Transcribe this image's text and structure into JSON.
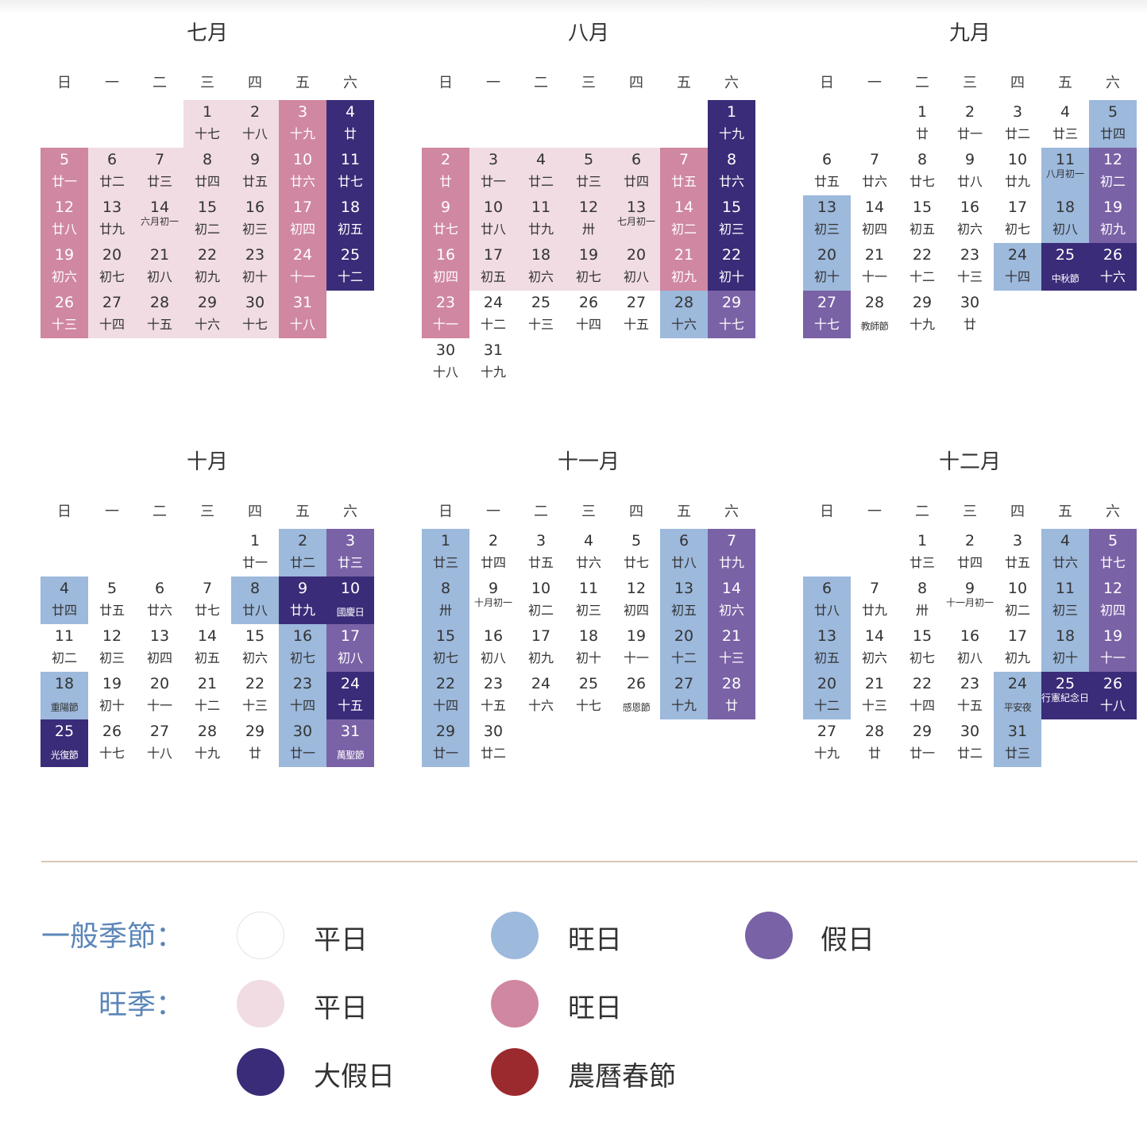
{
  "weekdays": [
    "日",
    "一",
    "二",
    "三",
    "四",
    "五",
    "六"
  ],
  "months": [
    {
      "title": "七月",
      "start": 3,
      "days": [
        [
          "1",
          "十七",
          "ph"
        ],
        [
          "2",
          "十八",
          "ph"
        ],
        [
          "3",
          "十九",
          "pp"
        ],
        [
          "4",
          "廿",
          "dk"
        ],
        [
          "5",
          "廿一",
          "pp"
        ],
        [
          "6",
          "廿二",
          "ph"
        ],
        [
          "7",
          "廿三",
          "ph"
        ],
        [
          "8",
          "廿四",
          "ph"
        ],
        [
          "9",
          "廿五",
          "ph"
        ],
        [
          "10",
          "廿六",
          "pp"
        ],
        [
          "11",
          "廿七",
          "dk"
        ],
        [
          "12",
          "廿八",
          "pp"
        ],
        [
          "13",
          "廿九",
          "ph"
        ],
        [
          "14",
          "六月初一",
          "ph"
        ],
        [
          "15",
          "初二",
          "ph"
        ],
        [
          "16",
          "初三",
          "ph"
        ],
        [
          "17",
          "初四",
          "pp"
        ],
        [
          "18",
          "初五",
          "dk"
        ],
        [
          "19",
          "初六",
          "pp"
        ],
        [
          "20",
          "初七",
          "ph"
        ],
        [
          "21",
          "初八",
          "ph"
        ],
        [
          "22",
          "初九",
          "ph"
        ],
        [
          "23",
          "初十",
          "ph"
        ],
        [
          "24",
          "十一",
          "pp"
        ],
        [
          "25",
          "十二",
          "dk"
        ],
        [
          "26",
          "十三",
          "pp"
        ],
        [
          "27",
          "十四",
          "ph"
        ],
        [
          "28",
          "十五",
          "ph"
        ],
        [
          "29",
          "十六",
          "ph"
        ],
        [
          "30",
          "十七",
          "ph"
        ],
        [
          "31",
          "十八",
          "pp"
        ]
      ]
    },
    {
      "title": "八月",
      "start": 6,
      "days": [
        [
          "1",
          "十九",
          "dk"
        ],
        [
          "2",
          "廿",
          "pp"
        ],
        [
          "3",
          "廿一",
          "ph"
        ],
        [
          "4",
          "廿二",
          "ph"
        ],
        [
          "5",
          "廿三",
          "ph"
        ],
        [
          "6",
          "廿四",
          "ph"
        ],
        [
          "7",
          "廿五",
          "pp"
        ],
        [
          "8",
          "廿六",
          "dk"
        ],
        [
          "9",
          "廿七",
          "pp"
        ],
        [
          "10",
          "廿八",
          "ph"
        ],
        [
          "11",
          "廿九",
          "ph"
        ],
        [
          "12",
          "卅",
          "ph"
        ],
        [
          "13",
          "七月初一",
          "ph"
        ],
        [
          "14",
          "初二",
          "pp"
        ],
        [
          "15",
          "初三",
          "dk"
        ],
        [
          "16",
          "初四",
          "pp"
        ],
        [
          "17",
          "初五",
          "ph"
        ],
        [
          "18",
          "初六",
          "ph"
        ],
        [
          "19",
          "初七",
          "ph"
        ],
        [
          "20",
          "初八",
          "ph"
        ],
        [
          "21",
          "初九",
          "pp"
        ],
        [
          "22",
          "初十",
          "dk"
        ],
        [
          "23",
          "十一",
          "pp"
        ],
        [
          "24",
          "十二",
          "n"
        ],
        [
          "25",
          "十三",
          "n"
        ],
        [
          "26",
          "十四",
          "n"
        ],
        [
          "27",
          "十五",
          "n"
        ],
        [
          "28",
          "十六",
          "pb"
        ],
        [
          "29",
          "十七",
          "pu"
        ],
        [
          "30",
          "十八",
          "n"
        ],
        [
          "31",
          "十九",
          "n"
        ]
      ]
    },
    {
      "title": "九月",
      "start": 2,
      "days": [
        [
          "1",
          "廿",
          "n"
        ],
        [
          "2",
          "廿一",
          "n"
        ],
        [
          "3",
          "廿二",
          "n"
        ],
        [
          "4",
          "廿三",
          "n"
        ],
        [
          "5",
          "廿四",
          "pb"
        ],
        [
          "6",
          "廿五",
          "n"
        ],
        [
          "7",
          "廿六",
          "n"
        ],
        [
          "8",
          "廿七",
          "n"
        ],
        [
          "9",
          "廿八",
          "n"
        ],
        [
          "10",
          "廿九",
          "n"
        ],
        [
          "11",
          "八月初一",
          "pb"
        ],
        [
          "12",
          "初二",
          "pu"
        ],
        [
          "13",
          "初三",
          "pb"
        ],
        [
          "14",
          "初四",
          "n"
        ],
        [
          "15",
          "初五",
          "n"
        ],
        [
          "16",
          "初六",
          "n"
        ],
        [
          "17",
          "初七",
          "n"
        ],
        [
          "18",
          "初八",
          "pb"
        ],
        [
          "19",
          "初九",
          "pu"
        ],
        [
          "20",
          "初十",
          "pb"
        ],
        [
          "21",
          "十一",
          "n"
        ],
        [
          "22",
          "十二",
          "n"
        ],
        [
          "23",
          "十三",
          "n"
        ],
        [
          "24",
          "十四",
          "pb"
        ],
        [
          "25",
          "中秋節",
          "dk"
        ],
        [
          "26",
          "十六",
          "dk"
        ],
        [
          "27",
          "十七",
          "pu"
        ],
        [
          "28",
          "教師節",
          "n"
        ],
        [
          "29",
          "十九",
          "n"
        ],
        [
          "30",
          "廿",
          "n"
        ]
      ]
    },
    {
      "title": "十月",
      "start": 4,
      "days": [
        [
          "1",
          "廿一",
          "n"
        ],
        [
          "2",
          "廿二",
          "pb"
        ],
        [
          "3",
          "廿三",
          "pu"
        ],
        [
          "4",
          "廿四",
          "pb"
        ],
        [
          "5",
          "廿五",
          "n"
        ],
        [
          "6",
          "廿六",
          "n"
        ],
        [
          "7",
          "廿七",
          "n"
        ],
        [
          "8",
          "廿八",
          "pb"
        ],
        [
          "9",
          "廿九",
          "dk"
        ],
        [
          "10",
          "國慶日",
          "dk"
        ],
        [
          "11",
          "初二",
          "n"
        ],
        [
          "12",
          "初三",
          "n"
        ],
        [
          "13",
          "初四",
          "n"
        ],
        [
          "14",
          "初五",
          "n"
        ],
        [
          "15",
          "初六",
          "n"
        ],
        [
          "16",
          "初七",
          "pb"
        ],
        [
          "17",
          "初八",
          "pu"
        ],
        [
          "18",
          "重陽節",
          "pb"
        ],
        [
          "19",
          "初十",
          "n"
        ],
        [
          "20",
          "十一",
          "n"
        ],
        [
          "21",
          "十二",
          "n"
        ],
        [
          "22",
          "十三",
          "n"
        ],
        [
          "23",
          "十四",
          "pb"
        ],
        [
          "24",
          "十五",
          "dk"
        ],
        [
          "25",
          "光復節",
          "dk"
        ],
        [
          "26",
          "十七",
          "n"
        ],
        [
          "27",
          "十八",
          "n"
        ],
        [
          "28",
          "十九",
          "n"
        ],
        [
          "29",
          "廿",
          "n"
        ],
        [
          "30",
          "廿一",
          "pb"
        ],
        [
          "31",
          "萬聖節",
          "pu"
        ]
      ]
    },
    {
      "title": "十一月",
      "start": 0,
      "days": [
        [
          "1",
          "廿三",
          "pb"
        ],
        [
          "2",
          "廿四",
          "n"
        ],
        [
          "3",
          "廿五",
          "n"
        ],
        [
          "4",
          "廿六",
          "n"
        ],
        [
          "5",
          "廿七",
          "n"
        ],
        [
          "6",
          "廿八",
          "pb"
        ],
        [
          "7",
          "廿九",
          "pu"
        ],
        [
          "8",
          "卅",
          "pb"
        ],
        [
          "9",
          "十月初一",
          "n"
        ],
        [
          "10",
          "初二",
          "n"
        ],
        [
          "11",
          "初三",
          "n"
        ],
        [
          "12",
          "初四",
          "n"
        ],
        [
          "13",
          "初五",
          "pb"
        ],
        [
          "14",
          "初六",
          "pu"
        ],
        [
          "15",
          "初七",
          "pb"
        ],
        [
          "16",
          "初八",
          "n"
        ],
        [
          "17",
          "初九",
          "n"
        ],
        [
          "18",
          "初十",
          "n"
        ],
        [
          "19",
          "十一",
          "n"
        ],
        [
          "20",
          "十二",
          "pb"
        ],
        [
          "21",
          "十三",
          "pu"
        ],
        [
          "22",
          "十四",
          "pb"
        ],
        [
          "23",
          "十五",
          "n"
        ],
        [
          "24",
          "十六",
          "n"
        ],
        [
          "25",
          "十七",
          "n"
        ],
        [
          "26",
          "感恩節",
          "n"
        ],
        [
          "27",
          "十九",
          "pb"
        ],
        [
          "28",
          "廿",
          "pu"
        ],
        [
          "29",
          "廿一",
          "pb"
        ],
        [
          "30",
          "廿二",
          "n"
        ]
      ]
    },
    {
      "title": "十二月",
      "start": 2,
      "days": [
        [
          "1",
          "廿三",
          "n"
        ],
        [
          "2",
          "廿四",
          "n"
        ],
        [
          "3",
          "廿五",
          "n"
        ],
        [
          "4",
          "廿六",
          "pb"
        ],
        [
          "5",
          "廿七",
          "pu"
        ],
        [
          "6",
          "廿八",
          "pb"
        ],
        [
          "7",
          "廿九",
          "n"
        ],
        [
          "8",
          "卅",
          "n"
        ],
        [
          "9",
          "十一月初一",
          "n"
        ],
        [
          "10",
          "初二",
          "n"
        ],
        [
          "11",
          "初三",
          "pb"
        ],
        [
          "12",
          "初四",
          "pu"
        ],
        [
          "13",
          "初五",
          "pb"
        ],
        [
          "14",
          "初六",
          "n"
        ],
        [
          "15",
          "初七",
          "n"
        ],
        [
          "16",
          "初八",
          "n"
        ],
        [
          "17",
          "初九",
          "n"
        ],
        [
          "18",
          "初十",
          "pb"
        ],
        [
          "19",
          "十一",
          "pu"
        ],
        [
          "20",
          "十二",
          "pb"
        ],
        [
          "21",
          "十三",
          "n"
        ],
        [
          "22",
          "十四",
          "n"
        ],
        [
          "23",
          "十五",
          "n"
        ],
        [
          "24",
          "平安夜",
          "pb"
        ],
        [
          "25",
          "行憲紀念日",
          "dk"
        ],
        [
          "26",
          "十八",
          "dk"
        ],
        [
          "27",
          "十九",
          "n"
        ],
        [
          "28",
          "廿",
          "n"
        ],
        [
          "29",
          "廿一",
          "n"
        ],
        [
          "30",
          "廿二",
          "n"
        ],
        [
          "31",
          "廿三",
          "pb"
        ]
      ]
    }
  ],
  "legend": {
    "normal_title": "一般季節：",
    "peak_title": "旺季：",
    "items": {
      "normal_weekday": {
        "label": "平日",
        "color": "#ffffff"
      },
      "normal_busy": {
        "label": "旺日",
        "color": "#9db9dc"
      },
      "normal_holiday": {
        "label": "假日",
        "color": "#7a62a6"
      },
      "peak_weekday": {
        "label": "平日",
        "color": "#f0dce2"
      },
      "peak_busy": {
        "label": "旺日",
        "color": "#d087a2"
      },
      "big_holiday": {
        "label": "大假日",
        "color": "#3a2c78"
      },
      "lunar_new_year": {
        "label": "農曆春節",
        "color": "#9a2a2e"
      }
    }
  }
}
